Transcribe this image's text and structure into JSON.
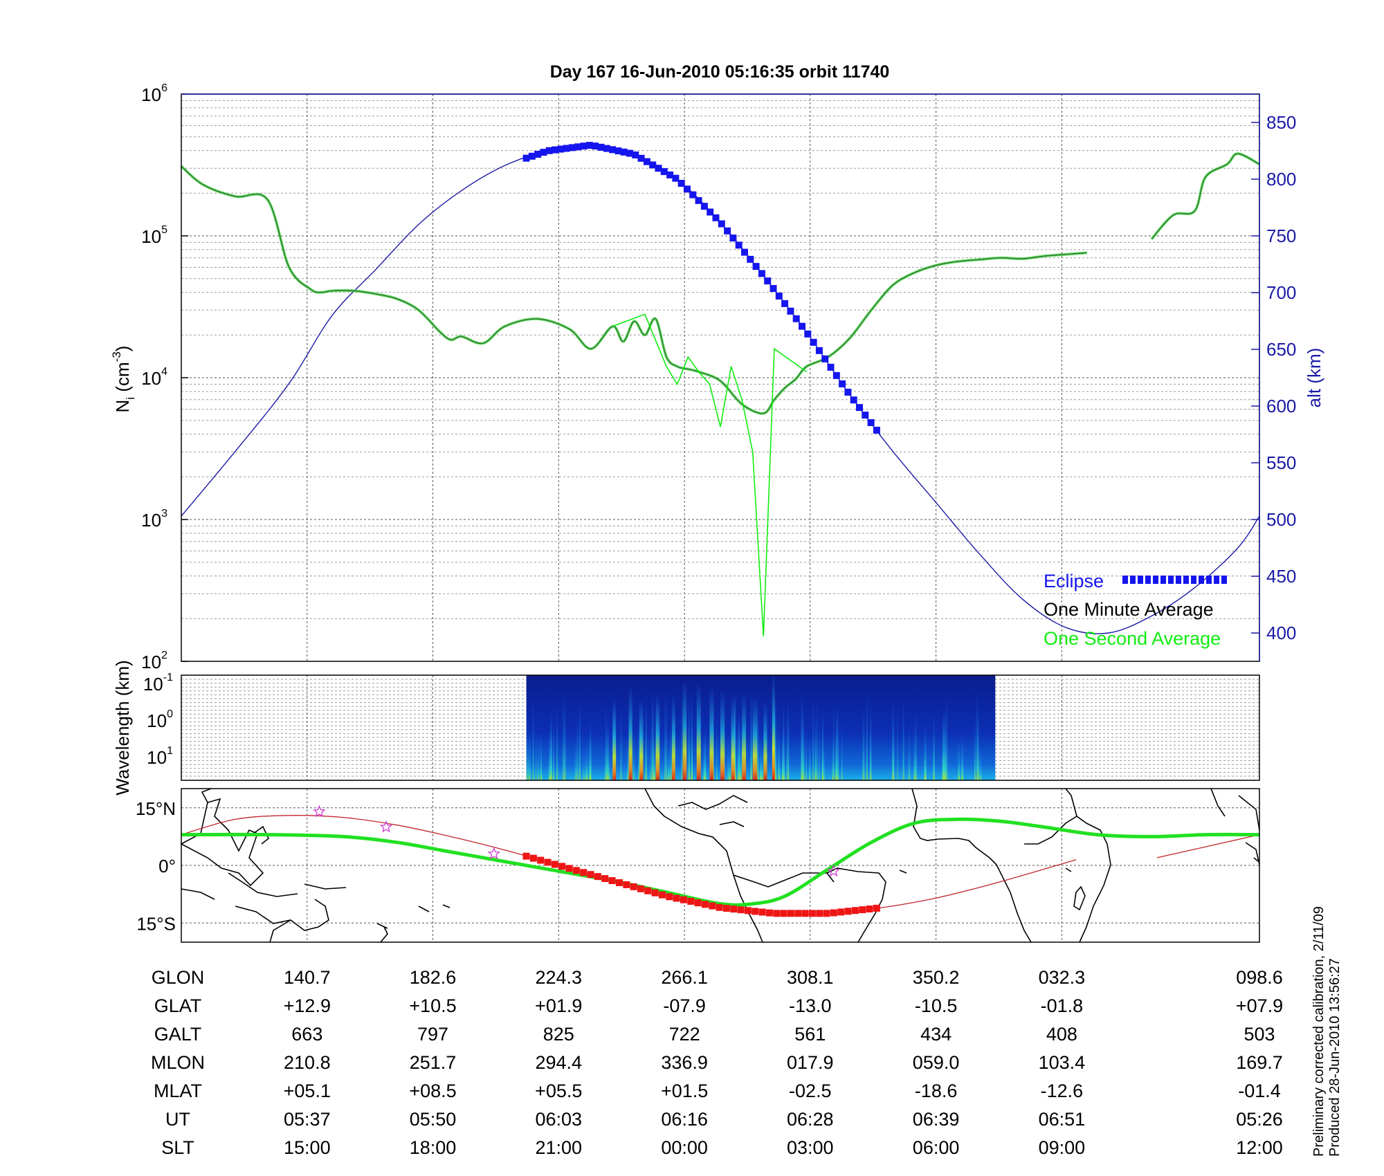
{
  "chart_data": {
    "type": "line",
    "title": "Day 167  16-Jun-2010 05:16:35   orbit 11740",
    "panels": {
      "density": {
        "ylabel_base": "N",
        "ylabel_sub": "i",
        "ylabel_unit": "(cm",
        "ylabel_unit_exp": "-3",
        "ylabel_close": ")",
        "yscale": "log",
        "ylim": [
          100,
          1000000
        ],
        "yticks": [
          {
            "base": "10",
            "exp": "2",
            "value": 100
          },
          {
            "base": "10",
            "exp": "3",
            "value": 1000
          },
          {
            "base": "10",
            "exp": "4",
            "value": 10000
          },
          {
            "base": "10",
            "exp": "5",
            "value": 100000
          },
          {
            "base": "10",
            "exp": "6",
            "value": 1000000
          }
        ],
        "right_ylabel": "alt (km)",
        "right_ylim": [
          375,
          875
        ],
        "right_yticks": [
          "400",
          "450",
          "500",
          "550",
          "600",
          "650",
          "700",
          "750",
          "800",
          "850"
        ],
        "grid": true,
        "legend": {
          "placement": "bottom-right",
          "entries": [
            {
              "label": "Eclipse",
              "color": "#1515ee"
            },
            {
              "label": "One Minute Average",
              "color": "#000000"
            },
            {
              "label": "One Second Average",
              "color": "#11ee11"
            }
          ]
        },
        "series": [
          {
            "name": "One Minute Average",
            "color": "#2d7a2d",
            "x": [
              0,
              0.02,
              0.05,
              0.08,
              0.1,
              0.12,
              0.13,
              0.14,
              0.16,
              0.18,
              0.2,
              0.22,
              0.24,
              0.25,
              0.26,
              0.28,
              0.3,
              0.33,
              0.36,
              0.38,
              0.4,
              0.41,
              0.42,
              0.43,
              0.44,
              0.45,
              0.46,
              0.47,
              0.48,
              0.5,
              0.52,
              0.54,
              0.55,
              0.56,
              0.57,
              0.58,
              0.6,
              0.62,
              0.64,
              0.66,
              0.68,
              0.7,
              0.72,
              0.74,
              0.76,
              0.78,
              0.8,
              0.82,
              0.84
            ],
            "y": [
              310000,
              230000,
              190000,
              180000,
              60000,
              42000,
              40000,
              41000,
              41000,
              39000,
              36000,
              30000,
              21000,
              18500,
              19500,
              17500,
              23000,
              26000,
              22000,
              16000,
              23000,
              18000,
              25000,
              20000,
              26000,
              14000,
              12000,
              11500,
              11000,
              9500,
              6500,
              5600,
              7000,
              8500,
              9800,
              12000,
              14000,
              19000,
              30000,
              45000,
              55000,
              62000,
              66000,
              68000,
              70000,
              69000,
              72000,
              74000,
              76000
            ]
          },
          {
            "name": "One Minute Average (continued)",
            "color": "#2d7a2d",
            "x": [
              0.9,
              0.92,
              0.94,
              0.95,
              0.97,
              0.98,
              1.0
            ],
            "y": [
              95000,
              140000,
              150000,
              260000,
              320000,
              380000,
              320000
            ]
          },
          {
            "name": "One Second Average spikes",
            "color": "#11ee11",
            "x": [
              0.4,
              0.43,
              0.45,
              0.46,
              0.47,
              0.48,
              0.49,
              0.5,
              0.51,
              0.52,
              0.53,
              0.54,
              0.55,
              0.58
            ],
            "y": [
              23000,
              28000,
              12000,
              9000,
              14000,
              11000,
              9000,
              4500,
              12000,
              7000,
              3000,
              150,
              16000,
              11000
            ]
          }
        ],
        "altitude_km": {
          "x": [
            0,
            0.05,
            0.1,
            0.14,
            0.18,
            0.22,
            0.26,
            0.3,
            0.34,
            0.38,
            0.42,
            0.46,
            0.5,
            0.54,
            0.58,
            0.62,
            0.66,
            0.7,
            0.74,
            0.78,
            0.82,
            0.86,
            0.9,
            0.94,
            0.98,
            1.0
          ],
          "y": [
            503,
            560,
            620,
            680,
            720,
            760,
            790,
            812,
            825,
            830,
            822,
            800,
            762,
            715,
            665,
            610,
            560,
            515,
            470,
            430,
            405,
            400,
            415,
            440,
            475,
            503
          ]
        },
        "eclipse_range_x": [
          0.32,
          0.645
        ]
      },
      "spectrogram": {
        "ylabel": "Wavelength (km)",
        "yticks": [
          {
            "base": "10",
            "exp": "-1"
          },
          {
            "base": "10",
            "exp": "0"
          },
          {
            "base": "10",
            "exp": "1"
          }
        ],
        "x_range": [
          0.32,
          0.755
        ]
      },
      "map": {
        "yticks": [
          "15°N",
          "0°",
          "15°S"
        ],
        "ylim": [
          -20,
          20
        ],
        "orbit_track": {
          "x": [
            0,
            0.05,
            0.1,
            0.15,
            0.2,
            0.25,
            0.3,
            0.35,
            0.4,
            0.45,
            0.5,
            0.55,
            0.6,
            0.65,
            0.7,
            0.75,
            0.8,
            0.83
          ],
          "y": [
            8,
            12,
            13,
            12.5,
            10.5,
            7.5,
            4,
            0,
            -4,
            -8,
            -11,
            -12.5,
            -12.5,
            -11,
            -8.5,
            -5,
            -1,
            1.5
          ]
        },
        "orbit_track_tail": {
          "x": [
            0.905,
            1.0
          ],
          "y": [
            2,
            8
          ]
        },
        "magnetic_equator": {
          "x": [
            0,
            0.08,
            0.15,
            0.2,
            0.25,
            0.3,
            0.35,
            0.4,
            0.45,
            0.5,
            0.53,
            0.56,
            0.6,
            0.64,
            0.68,
            0.72,
            0.76,
            0.8,
            0.85,
            0.9,
            0.95,
            1.0
          ],
          "y": [
            8,
            8,
            7.5,
            6,
            3.5,
            1,
            -1.5,
            -4,
            -7,
            -10,
            -10,
            -8,
            -1,
            6,
            11,
            12,
            11.5,
            10,
            8,
            7.5,
            8,
            8
          ]
        },
        "eclipse_range_x": [
          0.32,
          0.645
        ],
        "stars": [
          {
            "x": 0.128,
            "y": 14
          },
          {
            "x": 0.19,
            "y": 10
          },
          {
            "x": 0.29,
            "y": 3
          },
          {
            "x": 0.605,
            "y": -1.5
          }
        ]
      }
    },
    "xaxis_table": {
      "rows": [
        {
          "label": "GLON",
          "values": [
            "140.7",
            "182.6",
            "224.3",
            "266.1",
            "308.1",
            "350.2",
            "032.3",
            "098.6"
          ]
        },
        {
          "label": "GLAT",
          "values": [
            "+12.9",
            "+10.5",
            "+01.9",
            "-07.9",
            "-13.0",
            "-10.5",
            "-01.8",
            "+07.9"
          ]
        },
        {
          "label": "GALT",
          "values": [
            "663",
            "797",
            "825",
            "722",
            "561",
            "434",
            "408",
            "503"
          ]
        },
        {
          "label": "MLON",
          "values": [
            "210.8",
            "251.7",
            "294.4",
            "336.9",
            "017.9",
            "059.0",
            "103.4",
            "169.7"
          ]
        },
        {
          "label": "MLAT",
          "values": [
            "+05.1",
            "+08.5",
            "+05.5",
            "+01.5",
            "-02.5",
            "-18.6",
            "-12.6",
            "-01.4"
          ]
        },
        {
          "label": "UT",
          "values": [
            "05:37",
            "05:50",
            "06:03",
            "06:16",
            "06:28",
            "06:39",
            "06:51",
            "05:26"
          ]
        },
        {
          "label": "SLT",
          "values": [
            "15:00",
            "18:00",
            "21:00",
            "00:00",
            "03:00",
            "06:00",
            "09:00",
            "12:00"
          ]
        }
      ],
      "positions_x": [
        0.1167,
        0.2333,
        0.35,
        0.4667,
        0.5833,
        0.7,
        0.8167,
        1.0
      ]
    },
    "footnotes": [
      "Preliminary corrected calibration, 2/11/09",
      "Produced 28-Jun-2010 13:56:27"
    ]
  }
}
